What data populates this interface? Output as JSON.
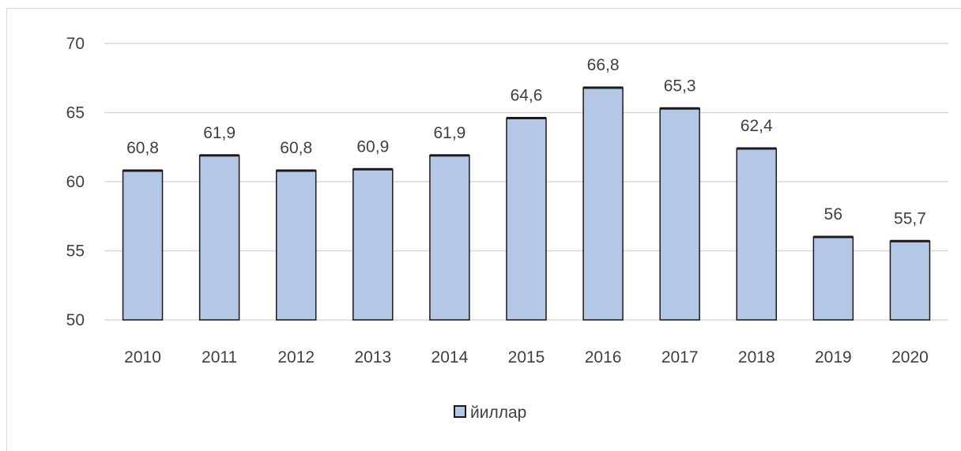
{
  "chart_data": {
    "type": "bar",
    "categories": [
      "2010",
      "2011",
      "2012",
      "2013",
      "2014",
      "2015",
      "2016",
      "2017",
      "2018",
      "2019",
      "2020"
    ],
    "series": [
      {
        "name": "йиллар",
        "values": [
          60.8,
          61.9,
          60.8,
          60.9,
          61.9,
          64.6,
          66.8,
          65.3,
          62.4,
          56,
          55.7
        ],
        "labels": [
          "60,8",
          "61,9",
          "60,8",
          "60,9",
          "61,9",
          "64,6",
          "66,8",
          "65,3",
          "62,4",
          "56",
          "55,7"
        ],
        "color": "#b4c7e7",
        "edge_color": "#1a1a1a"
      }
    ],
    "ylim": [
      50,
      70
    ],
    "yticks": [
      "50",
      "55",
      "60",
      "65",
      "70"
    ],
    "grid": "horizontal",
    "gridline_color": "#d9d9d9",
    "legend_position": "bottom"
  }
}
